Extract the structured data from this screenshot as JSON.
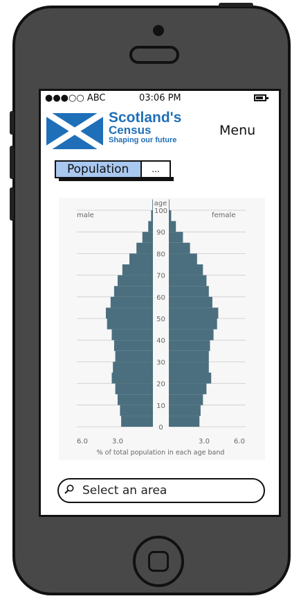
{
  "status_bar": {
    "carrier": "●●●○○ ABC",
    "time": "03:06 PM"
  },
  "header": {
    "logo_line1": "Scotland's",
    "logo_line2": "Census",
    "logo_line3": "Shaping our future",
    "menu_label": "Menu"
  },
  "tabs": {
    "active_label": "Population",
    "more_label": "..."
  },
  "search": {
    "placeholder": "Select an area"
  },
  "colors": {
    "bar": "#4b6f7e",
    "logo_blue": "#1f6fb8",
    "tab_active": "#a8c8f0",
    "phone_body": "#484848"
  },
  "chart_data": {
    "type": "bar",
    "orientation": "population-pyramid",
    "center_label": "age",
    "left_label": "male",
    "right_label": "female",
    "xlabel": "% of total population in each age band",
    "x_ticks": [
      "6.0",
      "3.0",
      "3.0",
      "6.0"
    ],
    "y_ticks": [
      "0",
      "10",
      "20",
      "30",
      "40",
      "50",
      "60",
      "70",
      "80",
      "90",
      "100"
    ],
    "xlim": [
      0,
      6
    ],
    "age_bands": [
      "0-4",
      "5-9",
      "10-14",
      "15-19",
      "20-24",
      "25-29",
      "30-34",
      "35-39",
      "40-44",
      "45-49",
      "50-54",
      "55-59",
      "60-64",
      "65-69",
      "70-74",
      "75-79",
      "80-84",
      "85-89",
      "90-94",
      "95-99",
      "100+"
    ],
    "series": [
      {
        "name": "male",
        "values": [
          2.7,
          2.8,
          3.0,
          3.2,
          3.5,
          3.4,
          3.2,
          3.3,
          3.5,
          3.9,
          4.0,
          3.6,
          3.3,
          3.0,
          2.6,
          2.0,
          1.4,
          0.9,
          0.4,
          0.15,
          0.05
        ]
      },
      {
        "name": "female",
        "values": [
          2.6,
          2.7,
          2.9,
          3.2,
          3.6,
          3.4,
          3.4,
          3.5,
          3.8,
          4.1,
          4.2,
          3.7,
          3.4,
          3.2,
          2.9,
          2.4,
          1.8,
          1.2,
          0.6,
          0.2,
          0.05
        ]
      }
    ]
  }
}
